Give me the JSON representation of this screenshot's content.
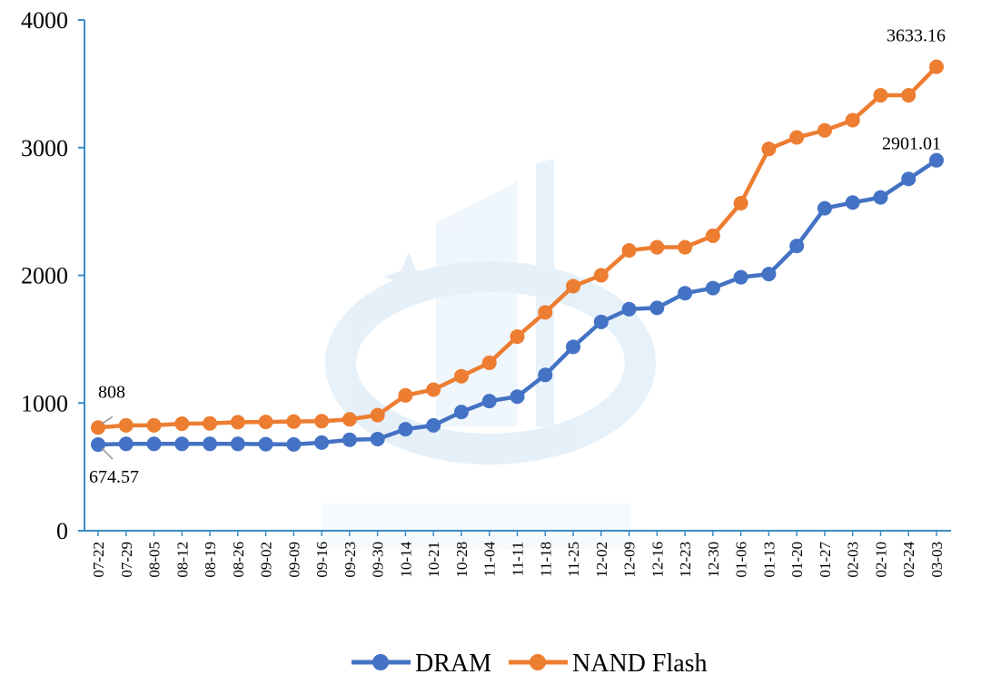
{
  "chart_data": {
    "type": "line",
    "title": "",
    "xlabel": "",
    "ylabel": "",
    "ylim": [
      0,
      4000
    ],
    "yticks": [
      0,
      1000,
      2000,
      3000,
      4000
    ],
    "ytick_labels": [
      "0",
      "1000",
      "2000",
      "3000",
      "4000"
    ],
    "grid": false,
    "legend_position": "bottom",
    "categories": [
      "07-22",
      "07-29",
      "08-05",
      "08-12",
      "08-19",
      "08-26",
      "09-02",
      "09-09",
      "09-16",
      "09-23",
      "09-30",
      "10-14",
      "10-21",
      "10-28",
      "11-04",
      "11-11",
      "11-18",
      "11-25",
      "12-02",
      "12-09",
      "12-16",
      "12-23",
      "12-30",
      "01-06",
      "01-13",
      "01-20",
      "01-27",
      "02-03",
      "02-10",
      "02-24",
      "03-03"
    ],
    "series": [
      {
        "name": "DRAM",
        "color": "#4472C4",
        "values": [
          674.57,
          680,
          680,
          680,
          680,
          680,
          678,
          676,
          690,
          712,
          718,
          795,
          825,
          930,
          1015,
          1050,
          1220,
          1440,
          1635,
          1735,
          1745,
          1860,
          1900,
          1985,
          2010,
          2230,
          2525,
          2570,
          2610,
          2755,
          2901.01
        ]
      },
      {
        "name": "NAND Flash",
        "color": "#ED7D31",
        "values": [
          808,
          825,
          825,
          838,
          840,
          850,
          852,
          855,
          858,
          872,
          905,
          1060,
          1105,
          1210,
          1315,
          1520,
          1710,
          1915,
          2000,
          2195,
          2220,
          2220,
          2310,
          2565,
          2990,
          3080,
          3135,
          3215,
          3410,
          3410,
          3633.16
        ]
      }
    ],
    "annotations": [
      {
        "series": "NAND Flash",
        "point": "07-22",
        "text": "808"
      },
      {
        "series": "DRAM",
        "point": "07-22",
        "text": "674.57"
      },
      {
        "series": "NAND Flash",
        "point": "03-03",
        "text": "3633.16"
      },
      {
        "series": "DRAM",
        "point": "03-03",
        "text": "2901.01"
      }
    ]
  }
}
